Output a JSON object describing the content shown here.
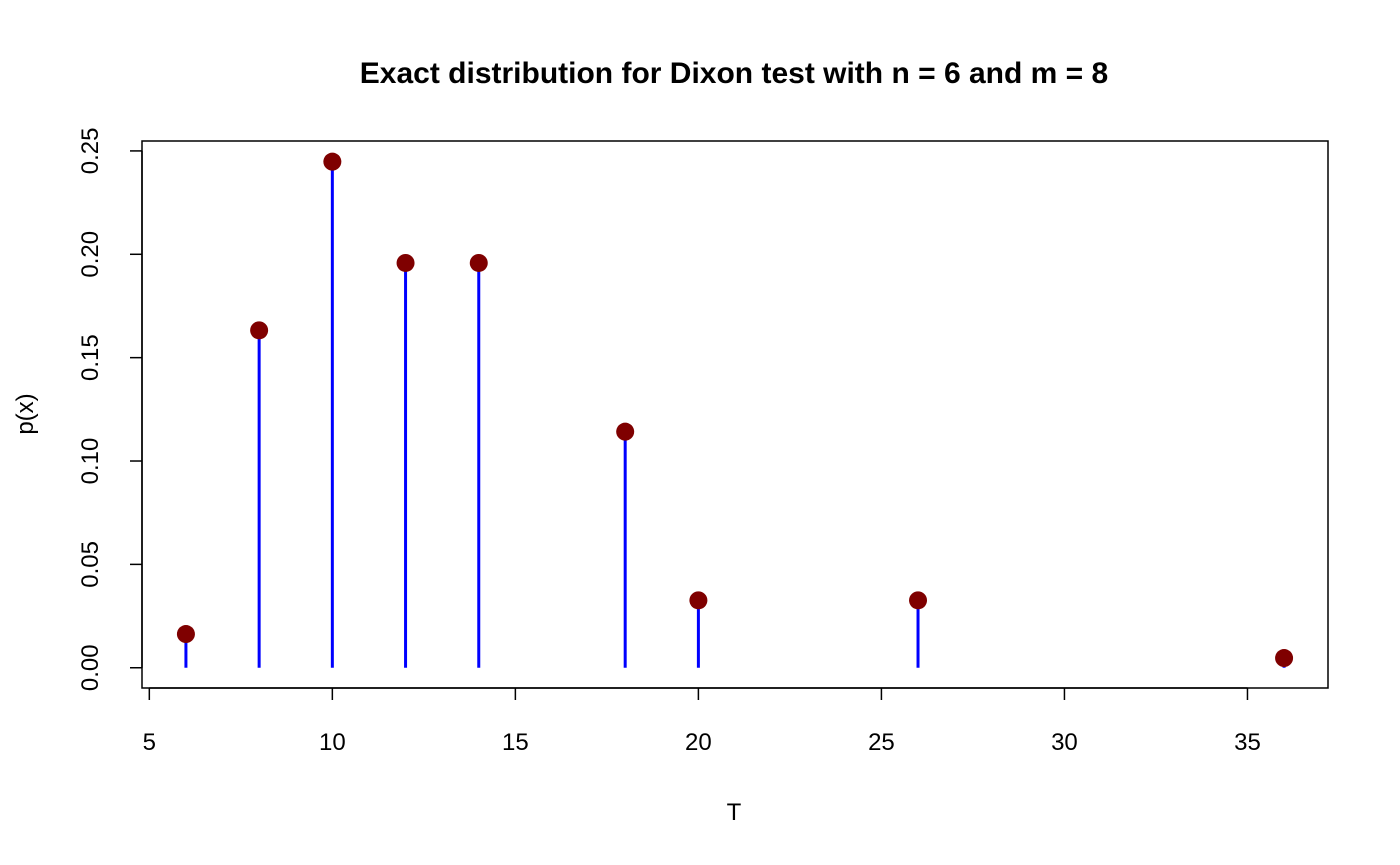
{
  "chart_data": {
    "type": "scatter",
    "title": "Exact distribution for Dixon test with n = 6 and m = 8",
    "xlabel": "T",
    "ylabel": "p(x)",
    "xlim": [
      4.8,
      37.2
    ],
    "ylim": [
      -0.0098,
      0.2548
    ],
    "x_ticks": [
      5,
      10,
      15,
      20,
      25,
      30,
      35
    ],
    "y_ticks": [
      0.0,
      0.05,
      0.1,
      0.15,
      0.2,
      0.25
    ],
    "x_tick_labels": [
      "5",
      "10",
      "15",
      "20",
      "25",
      "30",
      "35"
    ],
    "y_tick_labels": [
      "0.00",
      "0.05",
      "0.10",
      "0.15",
      "0.20",
      "0.25"
    ],
    "grid": false,
    "series": [
      {
        "x": [
          6,
          8,
          10,
          12,
          14,
          18,
          20,
          26,
          36
        ],
        "values": [
          0.0163,
          0.1632,
          0.2448,
          0.1958,
          0.1958,
          0.1142,
          0.0326,
          0.0326,
          0.0047
        ]
      }
    ],
    "colors": {
      "spike": "#0000ff",
      "point": "#7f0000",
      "axis": "#000000"
    }
  }
}
